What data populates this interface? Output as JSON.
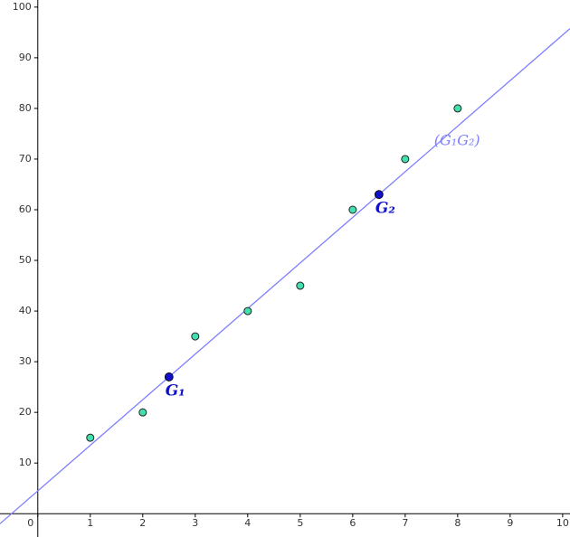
{
  "chart_data": {
    "type": "scatter",
    "x": [
      1,
      2,
      3,
      4,
      5,
      6,
      7,
      8
    ],
    "series": [
      {
        "name": null,
        "color": "#40e0b0",
        "values": [
          15,
          20,
          35,
          40,
          45,
          60,
          70,
          80
        ]
      }
    ],
    "points": [
      {
        "label": "G₁",
        "x": 2.5,
        "y": 27,
        "color": "#1010c8"
      },
      {
        "label": "G₂",
        "x": 6.5,
        "y": 63,
        "color": "#1010c8"
      }
    ],
    "line": {
      "label": "(G₁G₂)",
      "color": "#7f7fff"
    },
    "xlim": [
      -0.72,
      10.14
    ],
    "ylim": [
      -4.6,
      101.4
    ],
    "xticks": [
      0,
      1,
      2,
      3,
      4,
      5,
      6,
      7,
      8,
      9,
      10
    ],
    "yticks": [
      10,
      20,
      30,
      40,
      50,
      60,
      70,
      80,
      90,
      100
    ],
    "grid": false
  }
}
